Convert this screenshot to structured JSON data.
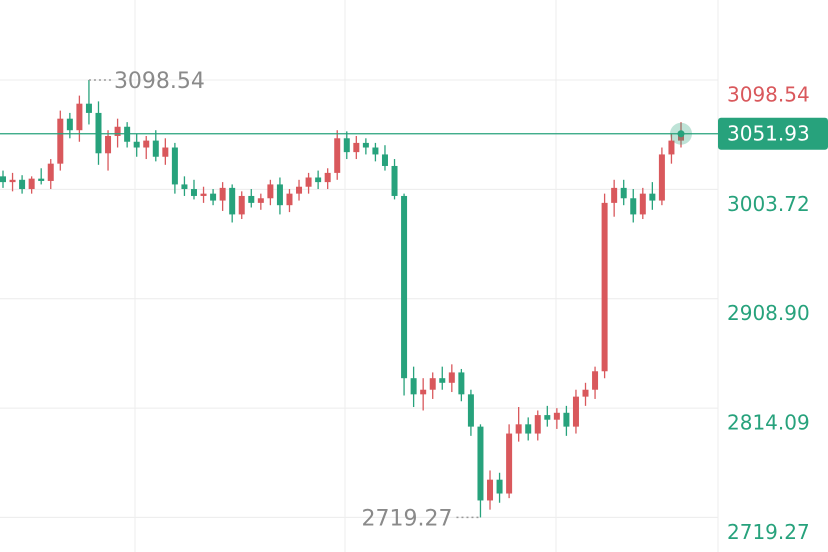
{
  "chart_data": {
    "type": "candlestick",
    "ylim": [
      2689.3,
      3167.9
    ],
    "yticks": [
      3098.54,
      3003.72,
      {
        "value": 2908.9,
        "label": "2908.90"
      },
      2814.09,
      2719.27
    ],
    "grid": true,
    "up_color": "#d9585c",
    "down_color": "#27a27c",
    "open": [
      3015,
      3010,
      3012,
      3004,
      3013,
      3011,
      3026,
      3065,
      3055,
      3078,
      3070,
      3035,
      3050,
      3058,
      3045,
      3040,
      3046,
      3032,
      3040,
      3008,
      3004,
      2998,
      3000,
      2994,
      3005,
      2982,
      2998,
      2992,
      2996,
      3008,
      2990,
      3000,
      3006,
      3014,
      3010,
      3018,
      3048,
      3036,
      3044,
      3040,
      3034,
      3024,
      2998,
      2840,
      2826,
      2830,
      2840,
      2836,
      2845,
      2826,
      2798,
      2734,
      2752,
      2740,
      2792,
      2800,
      2792,
      2808,
      2804,
      2810,
      2798,
      2824,
      2830,
      2846,
      2992,
      3005,
      2996,
      2982,
      3000,
      2994,
      3034,
      3046
    ],
    "high": [
      3020,
      3018,
      3016,
      3015,
      3022,
      3030,
      3072,
      3070,
      3085,
      3098.54,
      3080,
      3055,
      3065,
      3062,
      3052,
      3050,
      3055,
      3048,
      3044,
      3015,
      3012,
      3006,
      3004,
      3010,
      3008,
      3002,
      3004,
      3000,
      3012,
      3014,
      3004,
      3012,
      3018,
      3020,
      3022,
      3055,
      3054,
      3050,
      3048,
      3044,
      3042,
      3030,
      3000,
      2850,
      2840,
      2845,
      2850,
      2852,
      2848,
      2830,
      2800,
      2760,
      2758,
      2800,
      2815,
      2806,
      2812,
      2816,
      2814,
      2816,
      2830,
      2836,
      2850,
      3000,
      3012,
      3012,
      3004,
      3005,
      3010,
      3040,
      3052,
      3062
    ],
    "low": [
      3005,
      3002,
      3000,
      3000,
      3008,
      3004,
      3020,
      3048,
      3045,
      3060,
      3025,
      3020,
      3040,
      3040,
      3032,
      3030,
      3028,
      3025,
      3000,
      2998,
      2995,
      2992,
      2990,
      2985,
      2975,
      2978,
      2988,
      2986,
      2990,
      2982,
      2984,
      2994,
      3000,
      3004,
      3004,
      3012,
      3030,
      3030,
      3034,
      3028,
      3020,
      2995,
      2825,
      2815,
      2812,
      2822,
      2830,
      2828,
      2820,
      2790,
      2719.27,
      2726,
      2732,
      2736,
      2785,
      2786,
      2786,
      2798,
      2796,
      2790,
      2792,
      2816,
      2822,
      2840,
      2980,
      2990,
      2975,
      2978,
      2986,
      2990,
      3026,
      3040
    ],
    "close": [
      3010,
      3012,
      3004,
      3013,
      3011,
      3026,
      3065,
      3055,
      3078,
      3070,
      3035,
      3050,
      3058,
      3045,
      3040,
      3046,
      3032,
      3040,
      3008,
      3004,
      2998,
      3000,
      2994,
      3005,
      2982,
      2998,
      2992,
      2996,
      3008,
      2990,
      3000,
      3006,
      3014,
      3010,
      3018,
      3048,
      3036,
      3044,
      3040,
      3034,
      3024,
      2998,
      2840,
      2826,
      2830,
      2840,
      2836,
      2845,
      2826,
      2798,
      2734,
      2752,
      2740,
      2792,
      2800,
      2792,
      2808,
      2804,
      2810,
      2798,
      2824,
      2830,
      2846,
      2992,
      3005,
      2996,
      2982,
      3000,
      2994,
      3034,
      3046,
      3051.93
    ]
  }
}
